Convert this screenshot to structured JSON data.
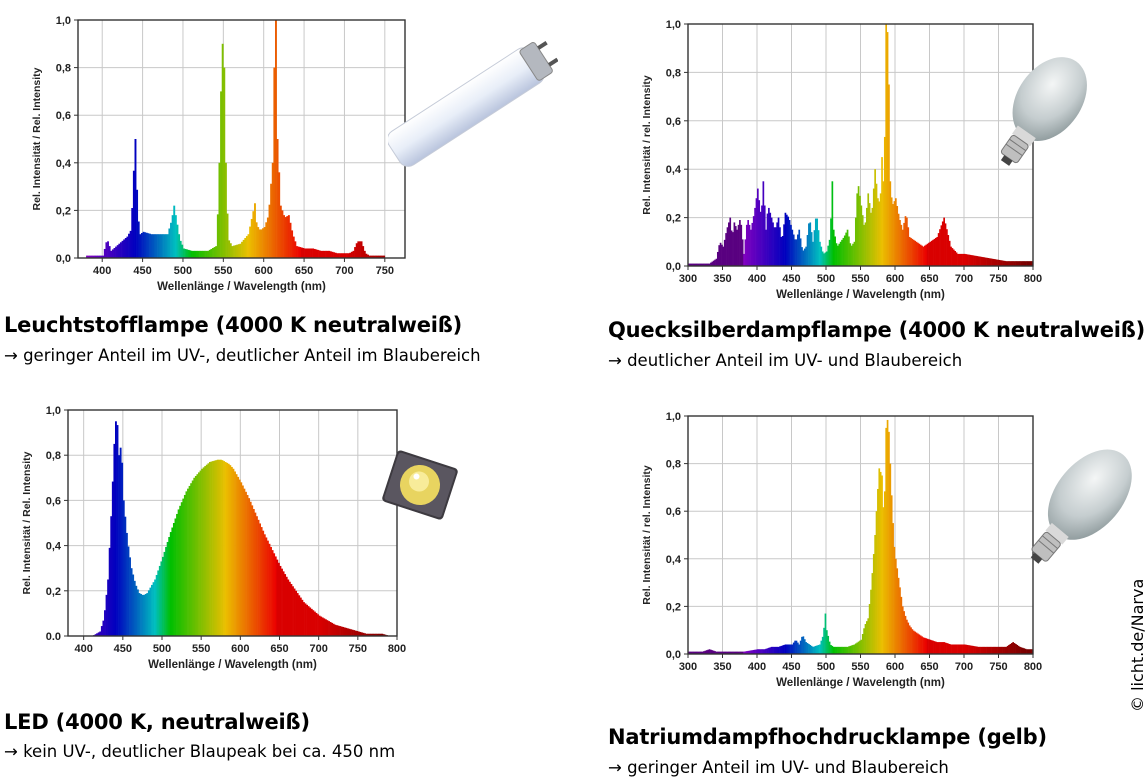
{
  "captions": [
    {
      "title": "Leuchtstofflampe (4000 K neutralweiß)",
      "subtitle": "→ geringer Anteil im UV-, deutlicher Anteil im Blaubereich"
    },
    {
      "title": "Quecksilberdampflampe (4000 K neutralweiß)",
      "subtitle": "→ deutlicher Anteil im UV- und Blaubereich"
    },
    {
      "title": "LED (4000 K, neutralweiß)",
      "subtitle": "→ kein UV-, deutlicher Blaupeak bei ca. 450 nm"
    },
    {
      "title": "Natriumdampfhochdrucklampe (gelb)",
      "subtitle": "→ geringer Anteil im UV- und Blaubereich"
    }
  ],
  "copyright": "© licht.de/Narva",
  "images": [
    "fluorescent-tube",
    "mercury-vapor-bulb",
    "led-chip",
    "sodium-vapor-bulb"
  ],
  "chart_data": [
    {
      "type": "area",
      "xlabel": "Wellenlänge / Wavelength (nm)",
      "ylabel": "Rel. Intensität / Rel. Intensity",
      "xlim": [
        370,
        775
      ],
      "ylim": [
        0,
        1.0
      ],
      "xticks": [
        "400",
        "450",
        "500",
        "550",
        "600",
        "650",
        "700",
        "750"
      ],
      "xtick_values": [
        400,
        450,
        500,
        550,
        600,
        650,
        700,
        750
      ],
      "yticks": [
        "0,0",
        "0,2",
        "0,4",
        "0,6",
        "0,8",
        "1,0"
      ],
      "grid": true,
      "x": [
        380,
        390,
        400,
        405,
        410,
        420,
        430,
        435,
        437,
        440,
        443,
        446,
        450,
        460,
        470,
        480,
        485,
        488,
        490,
        495,
        500,
        510,
        520,
        530,
        540,
        543,
        546,
        549,
        552,
        555,
        560,
        570,
        575,
        580,
        585,
        588,
        590,
        593,
        596,
        600,
        605,
        610,
        612,
        614,
        616,
        620,
        625,
        630,
        635,
        640,
        650,
        660,
        670,
        680,
        690,
        700,
        705,
        710,
        715,
        720,
        725,
        730,
        740,
        750
      ],
      "y": [
        0.01,
        0.01,
        0.01,
        0.08,
        0.03,
        0.06,
        0.09,
        0.12,
        0.3,
        0.5,
        0.18,
        0.1,
        0.11,
        0.1,
        0.1,
        0.1,
        0.16,
        0.22,
        0.18,
        0.08,
        0.04,
        0.03,
        0.03,
        0.03,
        0.05,
        0.25,
        0.7,
        1.0,
        0.4,
        0.08,
        0.05,
        0.06,
        0.08,
        0.1,
        0.18,
        0.23,
        0.15,
        0.12,
        0.12,
        0.13,
        0.18,
        0.4,
        0.8,
        1.0,
        0.5,
        0.22,
        0.17,
        0.18,
        0.1,
        0.05,
        0.04,
        0.04,
        0.03,
        0.03,
        0.02,
        0.02,
        0.02,
        0.03,
        0.07,
        0.07,
        0.02,
        0.01,
        0.01,
        0.01
      ]
    },
    {
      "type": "area",
      "xlabel": "Wellenlänge / Wavelength (nm)",
      "ylabel": "Rel. Intensität / rel. Intensity",
      "xlim": [
        300,
        800
      ],
      "ylim": [
        0,
        1.0
      ],
      "xticks": [
        "300",
        "350",
        "400",
        "450",
        "500",
        "550",
        "600",
        "650",
        "700",
        "750",
        "800"
      ],
      "xtick_values": [
        300,
        350,
        400,
        450,
        500,
        550,
        600,
        650,
        700,
        750,
        800
      ],
      "yticks": [
        "0,0",
        "0,2",
        "0,4",
        "0,6",
        "0,8",
        "1,0"
      ],
      "grid": true,
      "x": [
        300,
        320,
        330,
        340,
        345,
        350,
        355,
        360,
        363,
        366,
        370,
        375,
        380,
        385,
        390,
        395,
        400,
        405,
        408,
        412,
        415,
        420,
        425,
        430,
        435,
        440,
        445,
        450,
        455,
        460,
        465,
        470,
        475,
        480,
        485,
        490,
        495,
        500,
        505,
        508,
        510,
        515,
        520,
        525,
        530,
        535,
        540,
        545,
        550,
        555,
        560,
        565,
        570,
        575,
        578,
        580,
        583,
        586,
        589,
        592,
        595,
        600,
        605,
        610,
        615,
        620,
        630,
        640,
        650,
        660,
        670,
        680,
        690,
        700,
        720,
        740,
        760,
        780,
        800
      ],
      "y": [
        0.01,
        0.01,
        0.01,
        0.03,
        0.1,
        0.08,
        0.15,
        0.2,
        0.12,
        0.18,
        0.15,
        0.2,
        0.05,
        0.2,
        0.15,
        0.22,
        0.32,
        0.2,
        0.35,
        0.15,
        0.25,
        0.2,
        0.15,
        0.2,
        0.1,
        0.22,
        0.2,
        0.15,
        0.1,
        0.15,
        0.06,
        0.08,
        0.2,
        0.1,
        0.22,
        0.1,
        0.05,
        0.06,
        0.12,
        0.35,
        0.15,
        0.08,
        0.1,
        0.12,
        0.15,
        0.08,
        0.1,
        0.35,
        0.25,
        0.15,
        0.3,
        0.2,
        0.4,
        0.25,
        0.3,
        0.45,
        0.3,
        1.0,
        0.95,
        0.35,
        0.25,
        0.28,
        0.2,
        0.15,
        0.22,
        0.12,
        0.1,
        0.08,
        0.1,
        0.12,
        0.2,
        0.08,
        0.05,
        0.05,
        0.04,
        0.03,
        0.02,
        0.02,
        0.02
      ]
    },
    {
      "type": "area",
      "xlabel": "Wellenlänge / Wavelength (nm)",
      "ylabel": "Rel. Intensität / Rel. Intensity",
      "xlim": [
        380,
        800
      ],
      "ylim": [
        0,
        1.0
      ],
      "xticks": [
        "400",
        "450",
        "500",
        "550",
        "600",
        "650",
        "700",
        "750",
        "800"
      ],
      "xtick_values": [
        400,
        450,
        500,
        550,
        600,
        650,
        700,
        750,
        800
      ],
      "yticks": [
        "0.0",
        "0,2",
        "0,4",
        "0,6",
        "0,8",
        "1,0"
      ],
      "grid": true,
      "x": [
        400,
        410,
        420,
        425,
        430,
        435,
        438,
        441,
        444,
        447,
        450,
        455,
        460,
        465,
        470,
        475,
        480,
        490,
        500,
        510,
        520,
        530,
        540,
        550,
        560,
        570,
        575,
        580,
        585,
        590,
        600,
        610,
        620,
        630,
        640,
        650,
        660,
        670,
        680,
        690,
        700,
        710,
        720,
        730,
        740,
        750,
        760,
        770,
        780,
        790,
        800
      ],
      "y": [
        0,
        0,
        0.02,
        0.08,
        0.25,
        0.6,
        0.85,
        1.0,
        0.8,
        0.85,
        0.6,
        0.42,
        0.3,
        0.23,
        0.19,
        0.18,
        0.19,
        0.25,
        0.35,
        0.46,
        0.56,
        0.64,
        0.7,
        0.74,
        0.77,
        0.78,
        0.78,
        0.77,
        0.76,
        0.74,
        0.68,
        0.61,
        0.53,
        0.45,
        0.38,
        0.31,
        0.25,
        0.2,
        0.15,
        0.12,
        0.09,
        0.07,
        0.05,
        0.04,
        0.03,
        0.02,
        0.01,
        0.01,
        0.01,
        0,
        0
      ]
    },
    {
      "type": "area",
      "xlabel": "Wellenlänge / Wavelength (nm)",
      "ylabel": "Rel. Intensität / rel. Intensity",
      "xlim": [
        300,
        800
      ],
      "ylim": [
        0,
        1.0
      ],
      "xticks": [
        "300",
        "350",
        "400",
        "450",
        "500",
        "550",
        "600",
        "650",
        "700",
        "750",
        "800"
      ],
      "xtick_values": [
        300,
        350,
        400,
        450,
        500,
        550,
        600,
        650,
        700,
        750,
        800
      ],
      "yticks": [
        "0,0",
        "0,2",
        "0,4",
        "0,6",
        "0,8",
        "1,0"
      ],
      "grid": true,
      "x": [
        300,
        320,
        330,
        340,
        360,
        380,
        400,
        410,
        420,
        430,
        440,
        450,
        455,
        460,
        465,
        470,
        480,
        490,
        495,
        498,
        500,
        505,
        510,
        520,
        530,
        540,
        550,
        555,
        560,
        565,
        570,
        573,
        576,
        580,
        583,
        586,
        589,
        592,
        595,
        598,
        600,
        605,
        610,
        615,
        620,
        625,
        630,
        640,
        650,
        660,
        670,
        680,
        690,
        700,
        720,
        740,
        760,
        770,
        780,
        790,
        800
      ],
      "y": [
        0.01,
        0.01,
        0.02,
        0.01,
        0.01,
        0.01,
        0.02,
        0.02,
        0.03,
        0.03,
        0.04,
        0.04,
        0.06,
        0.04,
        0.08,
        0.05,
        0.03,
        0.04,
        0.08,
        0.17,
        0.1,
        0.04,
        0.03,
        0.03,
        0.03,
        0.04,
        0.06,
        0.12,
        0.15,
        0.3,
        0.5,
        0.65,
        0.78,
        0.75,
        0.55,
        0.95,
        1.0,
        0.8,
        0.6,
        0.45,
        0.4,
        0.3,
        0.2,
        0.15,
        0.12,
        0.1,
        0.09,
        0.07,
        0.06,
        0.05,
        0.05,
        0.04,
        0.04,
        0.04,
        0.03,
        0.03,
        0.03,
        0.05,
        0.03,
        0.02,
        0.02
      ]
    }
  ]
}
